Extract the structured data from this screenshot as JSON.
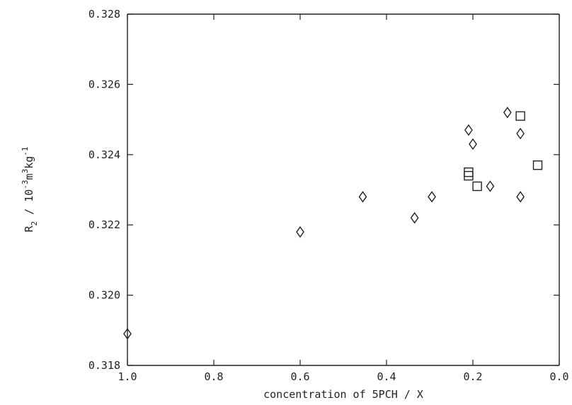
{
  "chart_data": {
    "type": "scatter",
    "title": "",
    "xlabel": "concentration of 5PCH / X",
    "ylabel_parts": {
      "symbol": "R",
      "symbol_sub": "2",
      "sep": " / ",
      "unit_base": "10",
      "unit_exp": "-3",
      "unit_m": "m",
      "unit_m_exp": "3",
      "unit_kg": "kg",
      "unit_kg_exp": "-1"
    },
    "xlim": [
      1.0,
      0.0
    ],
    "ylim": [
      0.318,
      0.328
    ],
    "x_ticks": [
      1.0,
      0.8,
      0.6,
      0.4,
      0.2,
      0.0
    ],
    "x_tick_labels": [
      "1.0",
      "0.8",
      "0.6",
      "0.4",
      "0.2",
      "0.0"
    ],
    "y_ticks": [
      0.318,
      0.32,
      0.322,
      0.324,
      0.326,
      0.328
    ],
    "y_tick_labels": [
      "0.318",
      "0.320",
      "0.322",
      "0.324",
      "0.326",
      "0.328"
    ],
    "grid": false,
    "series": [
      {
        "marker": "diamond",
        "points": [
          {
            "x": 1.0,
            "y": 0.3189
          },
          {
            "x": 0.6,
            "y": 0.3218
          },
          {
            "x": 0.455,
            "y": 0.3228
          },
          {
            "x": 0.335,
            "y": 0.3222
          },
          {
            "x": 0.295,
            "y": 0.3228
          },
          {
            "x": 0.21,
            "y": 0.3247
          },
          {
            "x": 0.2,
            "y": 0.3243
          },
          {
            "x": 0.16,
            "y": 0.3231
          },
          {
            "x": 0.12,
            "y": 0.3252
          },
          {
            "x": 0.09,
            "y": 0.3246
          },
          {
            "x": 0.09,
            "y": 0.3228
          }
        ]
      },
      {
        "marker": "square",
        "points": [
          {
            "x": 0.21,
            "y": 0.3235
          },
          {
            "x": 0.21,
            "y": 0.3234
          },
          {
            "x": 0.19,
            "y": 0.3231
          },
          {
            "x": 0.09,
            "y": 0.3251
          },
          {
            "x": 0.05,
            "y": 0.3237
          }
        ]
      }
    ]
  }
}
